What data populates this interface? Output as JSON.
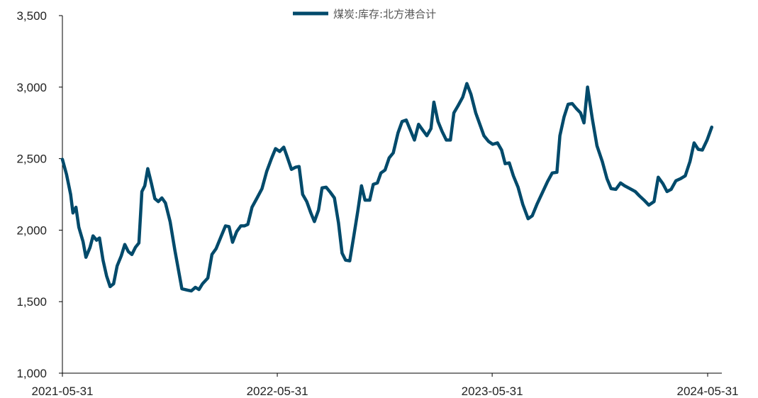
{
  "chart_data": {
    "type": "line",
    "title": "",
    "xlabel": "",
    "ylabel": "",
    "ylim": [
      1000,
      3500
    ],
    "yticks": [
      1000,
      1500,
      2000,
      2500,
      3000,
      3500
    ],
    "ytick_labels": [
      "1,000",
      "1,500",
      "2,000",
      "2,500",
      "3,000",
      "3,500"
    ],
    "xlim": [
      "2021-05-31",
      "2024-07-05"
    ],
    "xticks": [
      "2021-05-31",
      "2022-05-31",
      "2023-05-31",
      "2024-05-31"
    ],
    "xtick_labels": [
      "2021-05-31",
      "2022-05-31",
      "2023-05-31",
      "2024-05-31"
    ],
    "grid": false,
    "legend_position": "top-center",
    "series": [
      {
        "name": "煤炭:库存:北方港合计",
        "color": "#004a6b",
        "points": [
          [
            "2021-05-31",
            2495
          ],
          [
            "2021-06-07",
            2390
          ],
          [
            "2021-06-14",
            2250
          ],
          [
            "2021-06-18",
            2120
          ],
          [
            "2021-06-23",
            2160
          ],
          [
            "2021-06-28",
            2020
          ],
          [
            "2021-07-05",
            1920
          ],
          [
            "2021-07-10",
            1810
          ],
          [
            "2021-07-17",
            1880
          ],
          [
            "2021-07-22",
            1960
          ],
          [
            "2021-07-28",
            1930
          ],
          [
            "2021-08-02",
            1945
          ],
          [
            "2021-08-08",
            1790
          ],
          [
            "2021-08-14",
            1680
          ],
          [
            "2021-08-20",
            1605
          ],
          [
            "2021-08-26",
            1625
          ],
          [
            "2021-09-01",
            1750
          ],
          [
            "2021-09-08",
            1820
          ],
          [
            "2021-09-14",
            1900
          ],
          [
            "2021-09-20",
            1850
          ],
          [
            "2021-09-26",
            1830
          ],
          [
            "2021-10-02",
            1880
          ],
          [
            "2021-10-08",
            1910
          ],
          [
            "2021-10-13",
            2270
          ],
          [
            "2021-10-18",
            2310
          ],
          [
            "2021-10-23",
            2430
          ],
          [
            "2021-10-29",
            2330
          ],
          [
            "2021-11-04",
            2220
          ],
          [
            "2021-11-10",
            2200
          ],
          [
            "2021-11-16",
            2225
          ],
          [
            "2021-11-22",
            2190
          ],
          [
            "2021-11-30",
            2060
          ],
          [
            "2021-12-08",
            1860
          ],
          [
            "2021-12-20",
            1590
          ],
          [
            "2021-12-30",
            1580
          ],
          [
            "2022-01-05",
            1575
          ],
          [
            "2022-01-12",
            1600
          ],
          [
            "2022-01-18",
            1585
          ],
          [
            "2022-01-24",
            1625
          ],
          [
            "2022-02-02",
            1665
          ],
          [
            "2022-02-09",
            1830
          ],
          [
            "2022-02-16",
            1870
          ],
          [
            "2022-02-24",
            1950
          ],
          [
            "2022-03-04",
            2030
          ],
          [
            "2022-03-10",
            2025
          ],
          [
            "2022-03-16",
            1915
          ],
          [
            "2022-03-23",
            1990
          ],
          [
            "2022-03-30",
            2030
          ],
          [
            "2022-04-05",
            2030
          ],
          [
            "2022-04-11",
            2040
          ],
          [
            "2022-04-18",
            2160
          ],
          [
            "2022-04-26",
            2220
          ],
          [
            "2022-05-05",
            2290
          ],
          [
            "2022-05-13",
            2410
          ],
          [
            "2022-05-21",
            2500
          ],
          [
            "2022-05-28",
            2570
          ],
          [
            "2022-06-04",
            2550
          ],
          [
            "2022-06-11",
            2580
          ],
          [
            "2022-06-17",
            2510
          ],
          [
            "2022-06-24",
            2425
          ],
          [
            "2022-07-01",
            2440
          ],
          [
            "2022-07-07",
            2445
          ],
          [
            "2022-07-13",
            2250
          ],
          [
            "2022-07-20",
            2200
          ],
          [
            "2022-07-27",
            2120
          ],
          [
            "2022-08-02",
            2060
          ],
          [
            "2022-08-09",
            2140
          ],
          [
            "2022-08-15",
            2295
          ],
          [
            "2022-08-22",
            2300
          ],
          [
            "2022-08-29",
            2265
          ],
          [
            "2022-09-05",
            2225
          ],
          [
            "2022-09-12",
            2050
          ],
          [
            "2022-09-18",
            1840
          ],
          [
            "2022-09-24",
            1790
          ],
          [
            "2022-10-01",
            1785
          ],
          [
            "2022-10-08",
            1960
          ],
          [
            "2022-10-15",
            2140
          ],
          [
            "2022-10-21",
            2310
          ],
          [
            "2022-10-27",
            2210
          ],
          [
            "2022-11-04",
            2210
          ],
          [
            "2022-11-10",
            2320
          ],
          [
            "2022-11-17",
            2330
          ],
          [
            "2022-11-23",
            2400
          ],
          [
            "2022-11-30",
            2420
          ],
          [
            "2022-12-07",
            2505
          ],
          [
            "2022-12-14",
            2540
          ],
          [
            "2022-12-22",
            2680
          ],
          [
            "2022-12-29",
            2760
          ],
          [
            "2023-01-05",
            2770
          ],
          [
            "2023-01-12",
            2700
          ],
          [
            "2023-01-19",
            2630
          ],
          [
            "2023-01-26",
            2740
          ],
          [
            "2023-02-02",
            2700
          ],
          [
            "2023-02-09",
            2660
          ],
          [
            "2023-02-16",
            2710
          ],
          [
            "2023-02-21",
            2895
          ],
          [
            "2023-02-28",
            2760
          ],
          [
            "2023-03-07",
            2690
          ],
          [
            "2023-03-14",
            2630
          ],
          [
            "2023-03-21",
            2630
          ],
          [
            "2023-03-27",
            2820
          ],
          [
            "2023-04-03",
            2870
          ],
          [
            "2023-04-11",
            2930
          ],
          [
            "2023-04-18",
            3025
          ],
          [
            "2023-04-25",
            2950
          ],
          [
            "2023-05-03",
            2820
          ],
          [
            "2023-05-10",
            2740
          ],
          [
            "2023-05-17",
            2660
          ],
          [
            "2023-05-25",
            2620
          ],
          [
            "2023-06-01",
            2600
          ],
          [
            "2023-06-09",
            2610
          ],
          [
            "2023-06-16",
            2560
          ],
          [
            "2023-06-22",
            2465
          ],
          [
            "2023-06-29",
            2470
          ],
          [
            "2023-07-06",
            2380
          ],
          [
            "2023-07-14",
            2300
          ],
          [
            "2023-07-22",
            2180
          ],
          [
            "2023-07-31",
            2080
          ],
          [
            "2023-08-07",
            2100
          ],
          [
            "2023-08-15",
            2180
          ],
          [
            "2023-08-24",
            2260
          ],
          [
            "2023-09-02",
            2340
          ],
          [
            "2023-09-10",
            2400
          ],
          [
            "2023-09-18",
            2405
          ],
          [
            "2023-09-23",
            2660
          ],
          [
            "2023-09-30",
            2790
          ],
          [
            "2023-10-07",
            2880
          ],
          [
            "2023-10-14",
            2885
          ],
          [
            "2023-10-21",
            2850
          ],
          [
            "2023-10-28",
            2820
          ],
          [
            "2023-11-03",
            2750
          ],
          [
            "2023-11-09",
            3000
          ],
          [
            "2023-11-17",
            2780
          ],
          [
            "2023-11-25",
            2590
          ],
          [
            "2023-12-04",
            2480
          ],
          [
            "2023-12-12",
            2360
          ],
          [
            "2023-12-19",
            2290
          ],
          [
            "2023-12-27",
            2285
          ],
          [
            "2024-01-04",
            2330
          ],
          [
            "2024-01-11",
            2310
          ],
          [
            "2024-01-20",
            2290
          ],
          [
            "2024-01-29",
            2270
          ],
          [
            "2024-02-05",
            2240
          ],
          [
            "2024-02-13",
            2210
          ],
          [
            "2024-02-21",
            2175
          ],
          [
            "2024-03-01",
            2200
          ],
          [
            "2024-03-08",
            2370
          ],
          [
            "2024-03-16",
            2325
          ],
          [
            "2024-03-23",
            2270
          ],
          [
            "2024-03-30",
            2285
          ],
          [
            "2024-04-07",
            2345
          ],
          [
            "2024-04-15",
            2360
          ],
          [
            "2024-04-23",
            2380
          ],
          [
            "2024-05-01",
            2480
          ],
          [
            "2024-05-08",
            2610
          ],
          [
            "2024-05-15",
            2565
          ],
          [
            "2024-05-22",
            2560
          ],
          [
            "2024-05-30",
            2630
          ],
          [
            "2024-06-07",
            2720
          ]
        ]
      }
    ]
  }
}
